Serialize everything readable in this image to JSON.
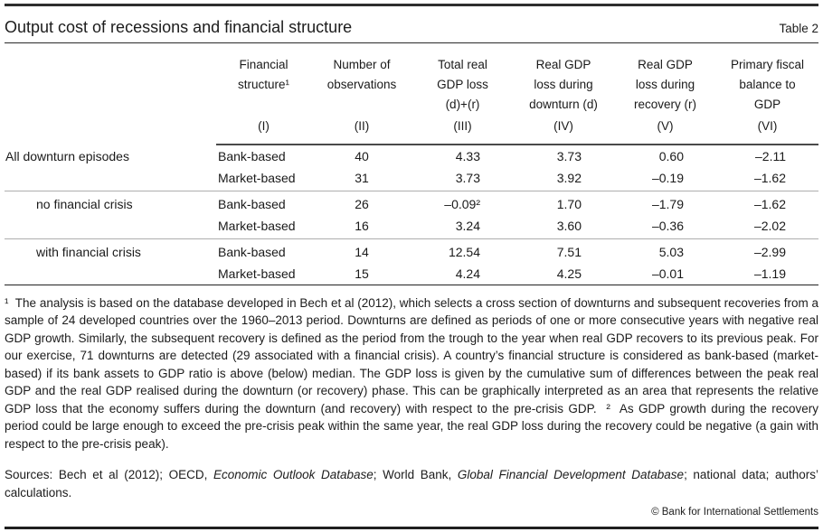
{
  "header": {
    "title": "Output cost of recessions and financial structure",
    "table_label": "Table 2"
  },
  "table": {
    "columns": [
      {
        "header": "Financial\nstructure¹",
        "numeral": "(I)"
      },
      {
        "header": "Number of\nobservations",
        "numeral": "(II)"
      },
      {
        "header": "Total real\nGDP loss\n(d)+(r)",
        "numeral": "(III)"
      },
      {
        "header": "Real GDP\nloss during\ndownturn (d)",
        "numeral": "(IV)"
      },
      {
        "header": "Real GDP\nloss during\nrecovery (r)",
        "numeral": "(V)"
      },
      {
        "header": "Primary fiscal\nbalance to\nGDP",
        "numeral": "(VI)"
      }
    ],
    "groups": [
      {
        "label": "All downturn episodes",
        "indent": false,
        "rows": [
          {
            "structure": "Bank-based",
            "values": [
              "40",
              "4.33",
              "3.73",
              "0.60",
              "–2.11"
            ]
          },
          {
            "structure": "Market-based",
            "values": [
              "31",
              "3.73",
              "3.92",
              "–0.19",
              "–1.62"
            ]
          }
        ]
      },
      {
        "label": "no financial crisis",
        "indent": true,
        "rows": [
          {
            "structure": "Bank-based",
            "values": [
              "26",
              "–0.09²",
              "1.70",
              "–1.79",
              "–1.62"
            ]
          },
          {
            "structure": "Market-based",
            "values": [
              "16",
              "3.24",
              "3.60",
              "–0.36",
              "–2.02"
            ]
          }
        ]
      },
      {
        "label": "with financial crisis",
        "indent": true,
        "rows": [
          {
            "structure": "Bank-based",
            "values": [
              "14",
              "12.54",
              "7.51",
              "5.03",
              "–2.99"
            ]
          },
          {
            "structure": "Market-based",
            "values": [
              "15",
              "4.24",
              "4.25",
              "–0.01",
              "–1.19"
            ]
          }
        ]
      }
    ]
  },
  "footnotes": {
    "text": "¹  The analysis is based on the database developed in Bech et al (2012), which selects a cross section of downturns and subsequent recoveries from a sample of 24 developed countries over the 1960–2013 period. Downturns are defined as periods of one or more consecutive years with negative real GDP growth. Similarly, the subsequent recovery is defined as the period from the trough to the year when real GDP recovers to its previous peak. For our exercise, 71 downturns are detected (29 associated with a financial crisis). A country’s financial structure is considered as bank-based (market-based) if its bank assets to GDP ratio is above (below) median. The GDP loss is given by the cumulative sum of differences between the peak real GDP and the real GDP realised during the downturn (or recovery) phase. This can be graphically interpreted as an area that represents the relative GDP loss that the economy suffers during the downturn (and recovery) with respect to the pre-crisis GDP.  ²  As GDP growth during the recovery period could be large enough to exceed the pre-crisis peak within the same year, the real GDP loss during the recovery could be negative (a gain with respect to the pre-crisis peak)."
  },
  "sources": {
    "segments": [
      {
        "text": "Sources: Bech et al (2012); OECD, ",
        "italic": false
      },
      {
        "text": "Economic Outlook Database",
        "italic": true
      },
      {
        "text": "; World Bank, ",
        "italic": false
      },
      {
        "text": "Global Financial Development Database",
        "italic": true
      },
      {
        "text": "; national data; authors’ calculations.",
        "italic": false
      }
    ]
  },
  "footer": {
    "copyright": "© Bank for International Settlements"
  }
}
